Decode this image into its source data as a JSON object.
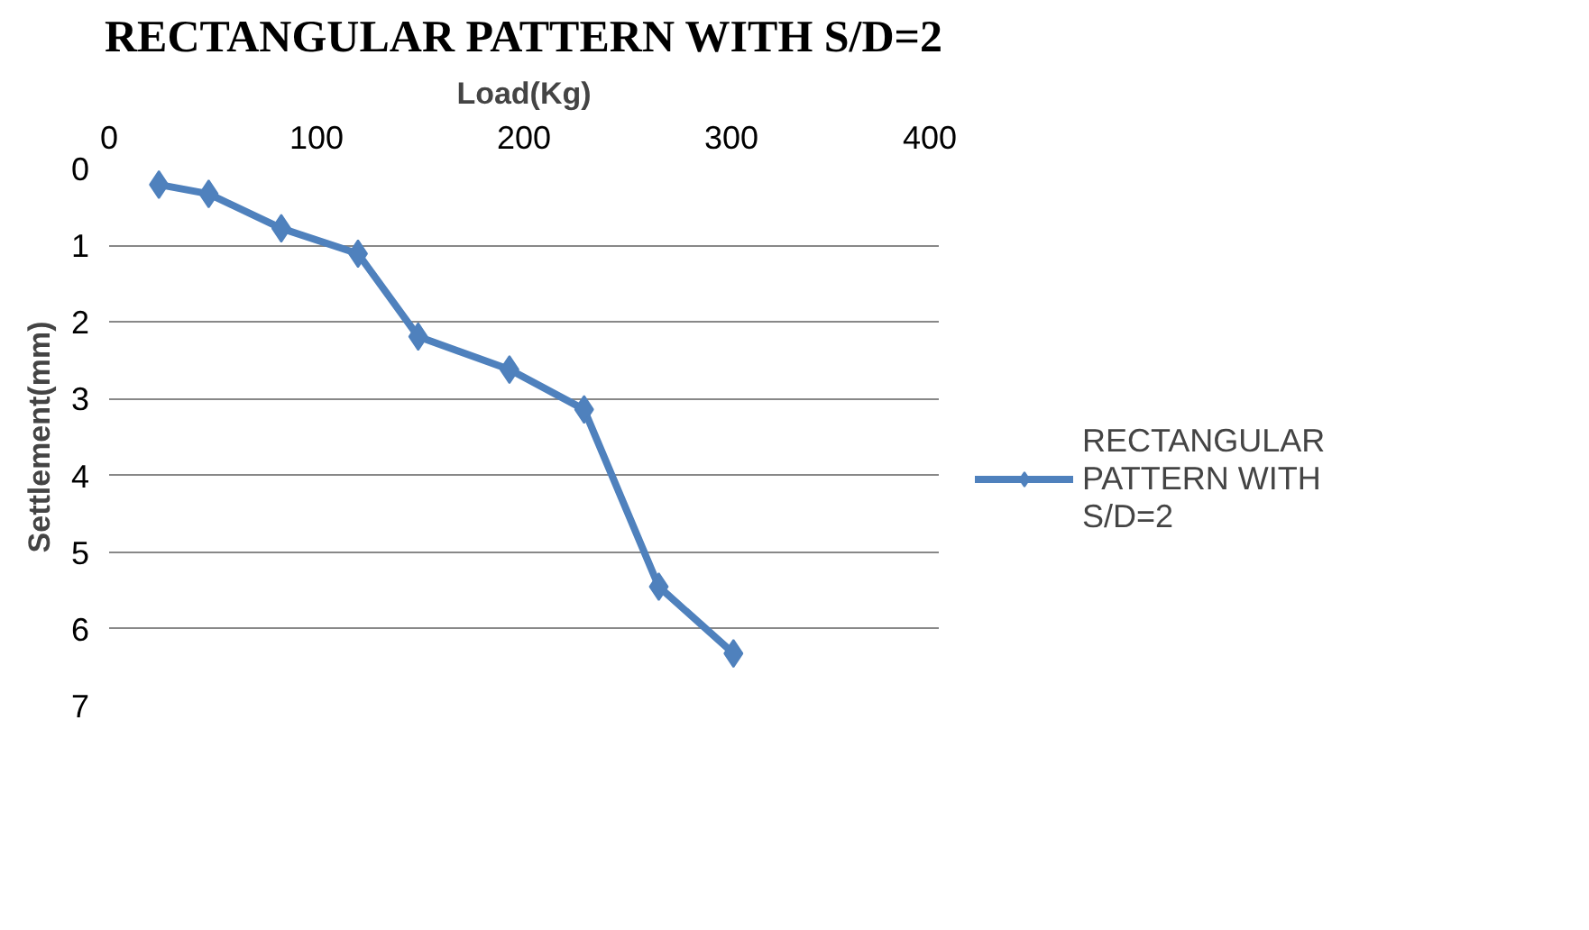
{
  "chart_data": {
    "type": "line",
    "title": "RECTANGULAR PATTERN WITH S/D=2",
    "xlabel": "Load(Kg)",
    "ylabel": "Settlement(mm)",
    "x": [
      24,
      48,
      83,
      120,
      149,
      193,
      229,
      265,
      301
    ],
    "series": [
      {
        "name": "RECTANGULAR PATTERN WITH S/D=2",
        "color": "#4f81bd",
        "values": [
          0.21,
          0.33,
          0.78,
          1.11,
          2.19,
          2.62,
          3.14,
          5.45,
          6.32
        ]
      }
    ],
    "xlim": [
      0,
      400
    ],
    "xticks": [
      0,
      100,
      200,
      300,
      400
    ],
    "ylim": [
      7,
      0
    ],
    "yticks": [
      0,
      1,
      2,
      3,
      4,
      5,
      6,
      7
    ],
    "grid": "y",
    "legend": "right",
    "marker": "diamond",
    "line_style": "solid"
  }
}
